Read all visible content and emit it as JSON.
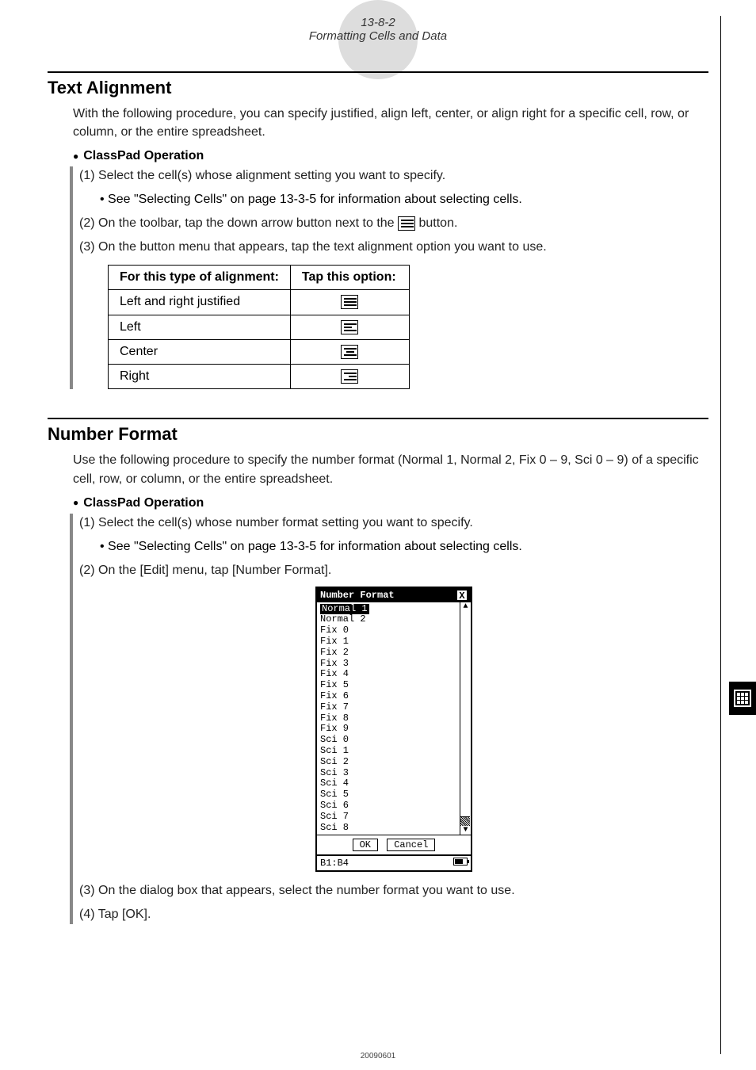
{
  "header": {
    "page_num": "13-8-2",
    "page_title": "Formatting Cells and Data",
    "circle_color": "#dddddd"
  },
  "section1": {
    "heading": "Text Alignment",
    "intro": "With the following procedure, you can specify justified, align left, center, or align right for a specific cell, row, or column, or the entire spreadsheet.",
    "op_heading": "ClassPad Operation",
    "step1": "(1) Select the cell(s) whose alignment setting you want to specify.",
    "step1_sub": "See \"Selecting Cells\" on page 13-3-5 for information about selecting cells.",
    "step2_pre": "(2) On the toolbar, tap the down arrow button next to the ",
    "step2_post": " button.",
    "step3": "(3) On the button menu that appears, tap the text alignment option you want to use.",
    "table": {
      "head_col1": "For this type of alignment:",
      "head_col2": "Tap this option:",
      "rows": [
        {
          "label": "Left and right justified",
          "icon": "justify"
        },
        {
          "label": "Left",
          "icon": "left"
        },
        {
          "label": "Center",
          "icon": "center"
        },
        {
          "label": "Right",
          "icon": "right"
        }
      ]
    }
  },
  "section2": {
    "heading": "Number Format",
    "intro": "Use the following procedure to specify the number format (Normal 1, Normal 2, Fix 0 – 9, Sci 0 – 9) of a specific cell, row, or column, or the entire spreadsheet.",
    "op_heading": "ClassPad Operation",
    "step1": "(1) Select the cell(s) whose number format setting you want to specify.",
    "step1_sub": "See \"Selecting Cells\" on page 13-3-5 for information about selecting cells.",
    "step2": "(2) On the [Edit] menu, tap [Number Format].",
    "step3": "(3) On the dialog box that appears, select the number format you want to use.",
    "step4": "(4) Tap [OK]."
  },
  "dialog": {
    "title": "Number Format",
    "selected": "Normal 1",
    "items": [
      "Normal 2",
      "Fix 0",
      "Fix 1",
      "Fix 2",
      "Fix 3",
      "Fix 4",
      "Fix 5",
      "Fix 6",
      "Fix 7",
      "Fix 8",
      "Fix 9",
      "Sci 0",
      "Sci 1",
      "Sci 2",
      "Sci 3",
      "Sci 4",
      "Sci 5",
      "Sci 6",
      "Sci 7",
      "Sci 8"
    ],
    "ok": "OK",
    "cancel": "Cancel",
    "status": "B1:B4"
  },
  "footer": "20090601"
}
